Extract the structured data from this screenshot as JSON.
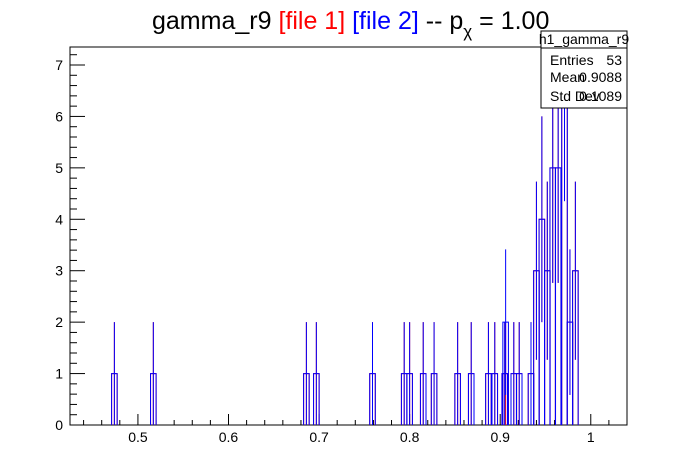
{
  "chart_data": {
    "type": "histogram",
    "title": {
      "prefix": "gamma_r9 ",
      "file1": "[file 1]",
      "file2": "[file 2]",
      "mid": " -- p",
      "sub": "χ",
      "suffix": " = 1.00"
    },
    "colors": {
      "file1": "#ff0000",
      "file2": "#0000ff",
      "axis": "#000000"
    },
    "xlim": [
      0.425,
      1.04
    ],
    "ylim": [
      0,
      7.35
    ],
    "bin_width": 0.00615,
    "x_ticks": [
      "0.5",
      "0.6",
      "0.7",
      "0.8",
      "0.9",
      "1"
    ],
    "y_ticks": [
      "0",
      "1",
      "2",
      "3",
      "4",
      "5",
      "6",
      "7"
    ],
    "series": [
      {
        "name": "file 1",
        "values": [
          1,
          1,
          1,
          1,
          1,
          1,
          1,
          1,
          1,
          1,
          1,
          1,
          1,
          1,
          1,
          1,
          1,
          1,
          3,
          4,
          3,
          5,
          5,
          7,
          2,
          3
        ]
      },
      {
        "name": "file 2",
        "values": [
          1,
          1,
          1,
          1,
          1,
          1,
          1,
          1,
          1,
          1,
          1,
          1,
          1,
          1,
          2,
          1,
          1,
          1,
          3,
          4,
          3,
          5,
          5,
          7,
          2,
          3
        ]
      }
    ],
    "bin_centers": [
      0.474,
      0.517,
      0.686,
      0.697,
      0.759,
      0.794,
      0.8,
      0.815,
      0.827,
      0.853,
      0.868,
      0.887,
      0.894,
      0.905,
      0.906,
      0.915,
      0.921,
      0.934,
      0.94,
      0.946,
      0.952,
      0.958,
      0.964,
      0.971,
      0.977,
      0.983
    ],
    "stats_box": {
      "name": "h1_gamma_r9",
      "rows": [
        {
          "label": "Entries",
          "value": "53"
        },
        {
          "label": "Mean",
          "value": "0.9088"
        },
        {
          "label": "Std Dev",
          "value": "0.1089"
        }
      ]
    }
  }
}
